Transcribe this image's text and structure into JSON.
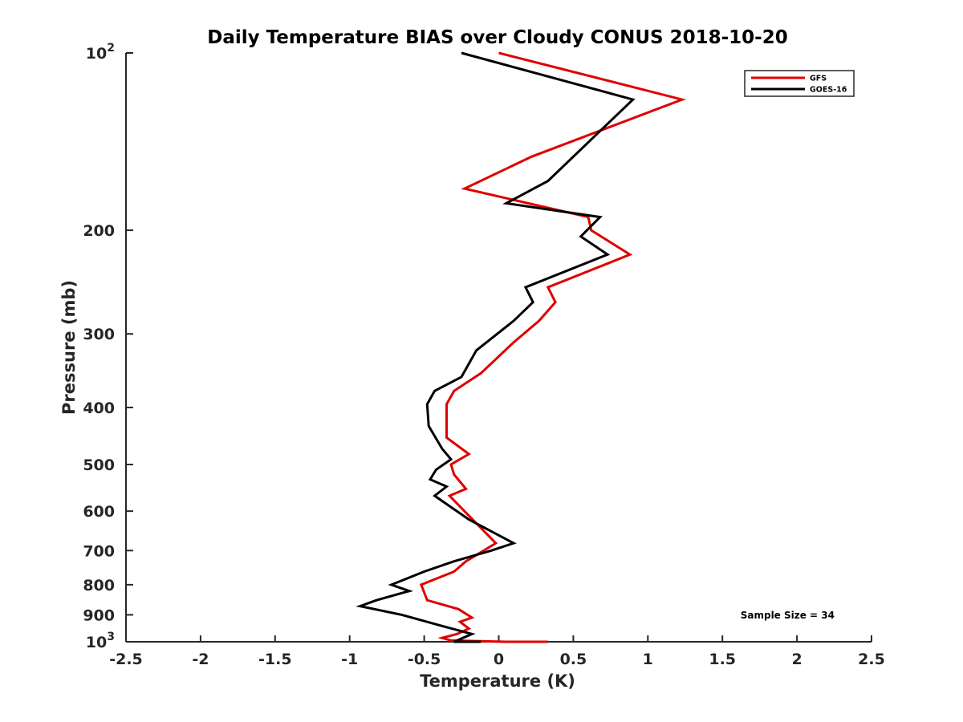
{
  "chart_data": {
    "type": "line",
    "title": "Daily Temperature BIAS over Cloudy CONUS 2018-10-20",
    "xlabel": "Temperature (K)",
    "ylabel": "Pressure (mb)",
    "xlim": [
      -2.5,
      2.5
    ],
    "ylim": [
      100,
      1000
    ],
    "yscale": "log",
    "y_reversed": true,
    "grid": false,
    "legend_position": "top-right",
    "x_ticks": [
      "-2.5",
      "-2",
      "-1.5",
      "-1",
      "-0.5",
      "0",
      "0.5",
      "1",
      "1.5",
      "2",
      "2.5"
    ],
    "y_ticks": [
      {
        "value": 100,
        "base": "10",
        "exp": "2"
      },
      {
        "value": 200,
        "label": "200"
      },
      {
        "value": 300,
        "label": "300"
      },
      {
        "value": 400,
        "label": "400"
      },
      {
        "value": 500,
        "label": "500"
      },
      {
        "value": 600,
        "label": "600"
      },
      {
        "value": 700,
        "label": "700"
      },
      {
        "value": 800,
        "label": "800"
      },
      {
        "value": 900,
        "label": "900"
      },
      {
        "value": 1000,
        "base": "10",
        "exp": "3"
      }
    ],
    "annotation": "Sample Size = 34",
    "series": [
      {
        "name": "GFS",
        "color": "#e00000",
        "points": [
          [
            0.0,
            100
          ],
          [
            1.23,
            120
          ],
          [
            0.22,
            150
          ],
          [
            -0.23,
            170
          ],
          [
            0.6,
            190
          ],
          [
            0.62,
            200
          ],
          [
            0.88,
            220
          ],
          [
            0.33,
            250
          ],
          [
            0.38,
            265
          ],
          [
            0.27,
            285
          ],
          [
            0.1,
            310
          ],
          [
            -0.12,
            350
          ],
          [
            -0.3,
            375
          ],
          [
            -0.35,
            395
          ],
          [
            -0.35,
            450
          ],
          [
            -0.2,
            480
          ],
          [
            -0.32,
            500
          ],
          [
            -0.3,
            520
          ],
          [
            -0.22,
            550
          ],
          [
            -0.33,
            565
          ],
          [
            -0.23,
            600
          ],
          [
            -0.02,
            680
          ],
          [
            -0.22,
            730
          ],
          [
            -0.3,
            760
          ],
          [
            -0.52,
            800
          ],
          [
            -0.48,
            850
          ],
          [
            -0.27,
            880
          ],
          [
            -0.18,
            910
          ],
          [
            -0.26,
            925
          ],
          [
            -0.2,
            950
          ],
          [
            -0.28,
            970
          ],
          [
            -0.38,
            985
          ],
          [
            -0.32,
            995
          ],
          [
            0.05,
            1010
          ],
          [
            0.33,
            1040
          ]
        ]
      },
      {
        "name": "GOES-16",
        "color": "#000000",
        "points": [
          [
            -0.25,
            100
          ],
          [
            0.9,
            120
          ],
          [
            0.33,
            165
          ],
          [
            0.05,
            180
          ],
          [
            0.68,
            190
          ],
          [
            0.55,
            205
          ],
          [
            0.73,
            220
          ],
          [
            0.18,
            250
          ],
          [
            0.23,
            265
          ],
          [
            0.1,
            285
          ],
          [
            -0.15,
            320
          ],
          [
            -0.25,
            355
          ],
          [
            -0.43,
            375
          ],
          [
            -0.48,
            395
          ],
          [
            -0.47,
            430
          ],
          [
            -0.38,
            470
          ],
          [
            -0.32,
            490
          ],
          [
            -0.42,
            510
          ],
          [
            -0.46,
            530
          ],
          [
            -0.35,
            545
          ],
          [
            -0.43,
            565
          ],
          [
            -0.2,
            620
          ],
          [
            0.1,
            680
          ],
          [
            -0.05,
            700
          ],
          [
            -0.3,
            730
          ],
          [
            -0.5,
            760
          ],
          [
            -0.72,
            800
          ],
          [
            -0.6,
            820
          ],
          [
            -0.82,
            850
          ],
          [
            -0.93,
            870
          ],
          [
            -0.65,
            900
          ],
          [
            -0.38,
            940
          ],
          [
            -0.18,
            970
          ],
          [
            -0.3,
            1020
          ],
          [
            -0.12,
            1045
          ]
        ]
      }
    ]
  }
}
